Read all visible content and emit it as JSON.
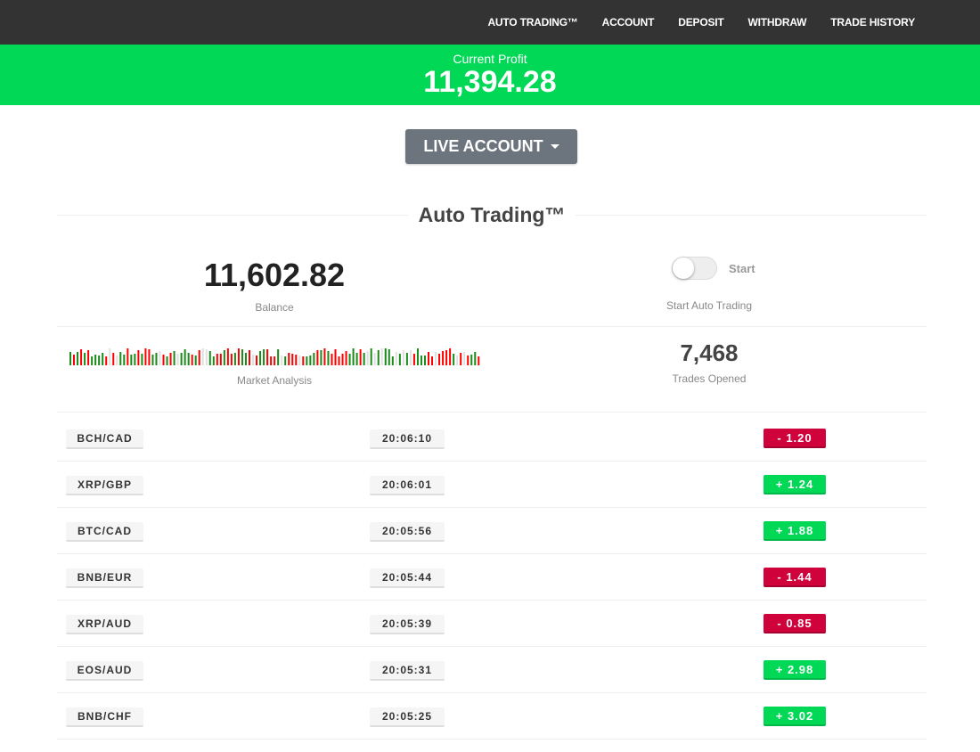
{
  "nav": {
    "items": [
      "AUTO TRADING™",
      "ACCOUNT",
      "DEPOSIT",
      "WITHDRAW",
      "TRADE HISTORY"
    ]
  },
  "profit": {
    "label": "Current Profit",
    "value": "11,394.28"
  },
  "account_button": {
    "label": "LIVE ACCOUNT"
  },
  "section_title": "Auto Trading™",
  "balance": {
    "value": "11,602.82",
    "label": "Balance"
  },
  "toggle": {
    "label": "Start",
    "caption": "Start Auto Trading",
    "on": false
  },
  "market": {
    "label": "Market Analysis"
  },
  "trades": {
    "value": "7,468",
    "label": "Trades Opened"
  },
  "colors": {
    "green": "#00d856",
    "red": "#d0023b",
    "bar_green": "#1a8a1a",
    "bar_red": "#ff0000",
    "bar_gray": "#e0e0e0"
  },
  "rows": [
    {
      "pair": "BCH/CAD",
      "time": "20:06:10",
      "amount": "-  1.20",
      "dir": "down"
    },
    {
      "pair": "XRP/GBP",
      "time": "20:06:01",
      "amount": "+  1.24",
      "dir": "up"
    },
    {
      "pair": "BTC/CAD",
      "time": "20:05:56",
      "amount": "+  1.88",
      "dir": "up"
    },
    {
      "pair": "BNB/EUR",
      "time": "20:05:44",
      "amount": "-  1.44",
      "dir": "down"
    },
    {
      "pair": "XRP/AUD",
      "time": "20:05:39",
      "amount": "-  0.85",
      "dir": "down"
    },
    {
      "pair": "EOS/AUD",
      "time": "20:05:31",
      "amount": "+  2.98",
      "dir": "up"
    },
    {
      "pair": "BNB/CHF",
      "time": "20:05:25",
      "amount": "+  3.02",
      "dir": "up"
    }
  ]
}
